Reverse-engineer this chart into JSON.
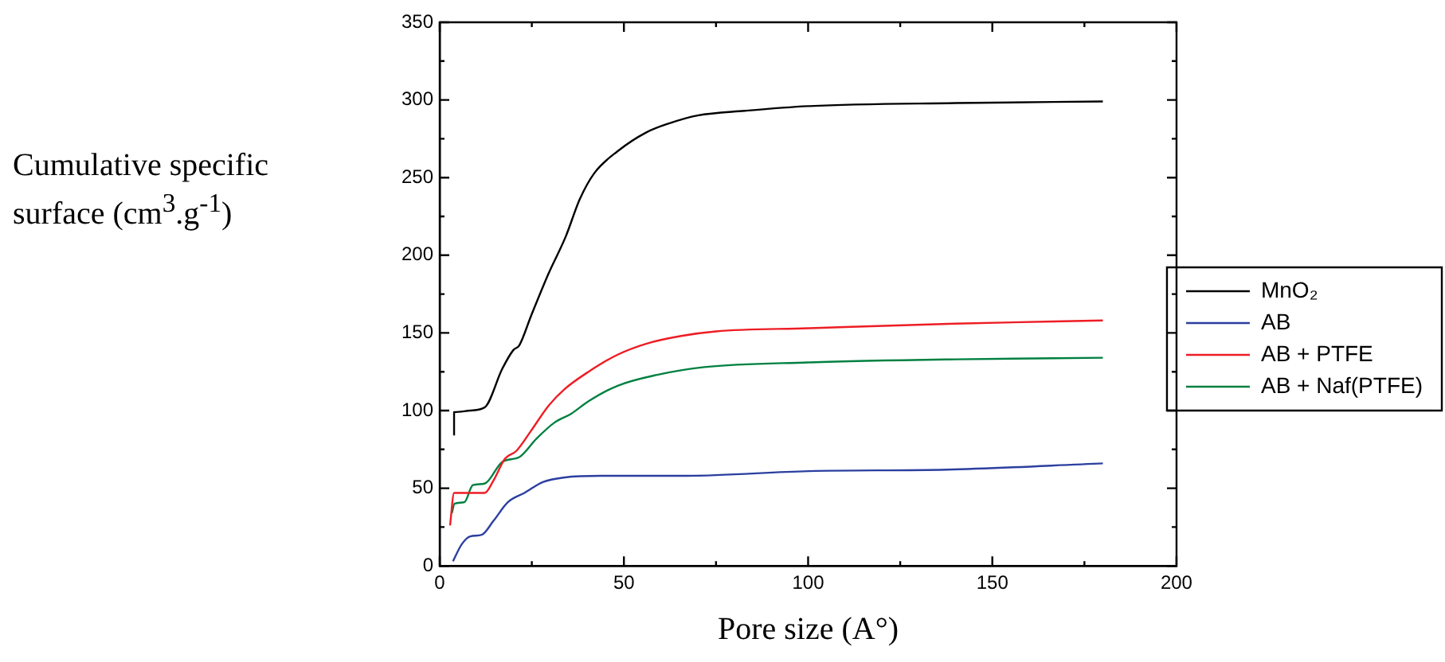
{
  "chart_data": {
    "type": "line",
    "xlabel": "Pore size (A°)",
    "ylabel": "Cumulative specific surface (cm$^{3}$.g$^{-1}$)",
    "xlim": [
      0,
      200
    ],
    "xticks": [
      0,
      {
        "value": 25,
        "label": null
      },
      50,
      {
        "value": 75,
        "label": null
      },
      100,
      {
        "value": 125,
        "label": null
      },
      150,
      {
        "value": 175,
        "label": null
      },
      200
    ],
    "ylim": [
      0,
      350
    ],
    "yticks": [
      0,
      {
        "value": 25,
        "label": null
      },
      50,
      {
        "value": 75,
        "label": null
      },
      100,
      {
        "value": 125,
        "label": null
      },
      150,
      {
        "value": 175,
        "label": null
      },
      200,
      {
        "value": 225,
        "label": null
      },
      250,
      {
        "value": 275,
        "label": null
      },
      300,
      {
        "value": 325,
        "label": null
      },
      350
    ],
    "grid": false,
    "legend": "right",
    "marker": "none",
    "line_style": "solid",
    "series": [
      {
        "name": "MnO₂",
        "color": "#000000",
        "x": [
          3.9,
          3.9,
          8.3,
          12.2,
          17,
          20,
          21.6,
          24.8,
          29.5,
          34.2,
          38,
          42,
          48.3,
          56,
          62.4,
          70,
          82.8,
          100,
          140,
          180
        ],
        "values": [
          84,
          99,
          100,
          102,
          127,
          139,
          142,
          161,
          188,
          212,
          236,
          253,
          267,
          279,
          285,
          290,
          293,
          296,
          298,
          299
        ]
      },
      {
        "name": "AB",
        "color": "#2b3fa0",
        "x": [
          3.6,
          6,
          8.3,
          11.4,
          14.6,
          18.5,
          23,
          28,
          34,
          43.6,
          67,
          100,
          137.6,
          180
        ],
        "values": [
          3,
          14,
          19,
          20,
          29,
          41,
          47,
          54,
          57,
          58,
          58,
          61,
          62,
          66
        ]
      },
      {
        "name": "AB + PTFE",
        "color": "#ee1c24",
        "x": [
          2.8,
          3.9,
          12.2,
          14.6,
          17.7,
          20.8,
          24.8,
          29.5,
          34,
          40.4,
          48.3,
          56,
          65.5,
          75,
          100,
          140,
          180
        ],
        "values": [
          26,
          47,
          47,
          55,
          69,
          74,
          87,
          103,
          114,
          125,
          136,
          143,
          148,
          151,
          153,
          156,
          158
        ]
      },
      {
        "name": "AB + Naf(PTFE)",
        "color": "#008040",
        "x": [
          3.3,
          4,
          6.7,
          9,
          12.2,
          17,
          21.6,
          26.3,
          31,
          35.7,
          40.4,
          48.3,
          59,
          71.8,
          100,
          140,
          180
        ],
        "values": [
          34,
          40,
          41,
          52,
          53,
          67,
          70,
          82,
          92,
          98,
          106,
          116,
          123,
          128,
          131,
          133,
          134
        ]
      }
    ]
  }
}
